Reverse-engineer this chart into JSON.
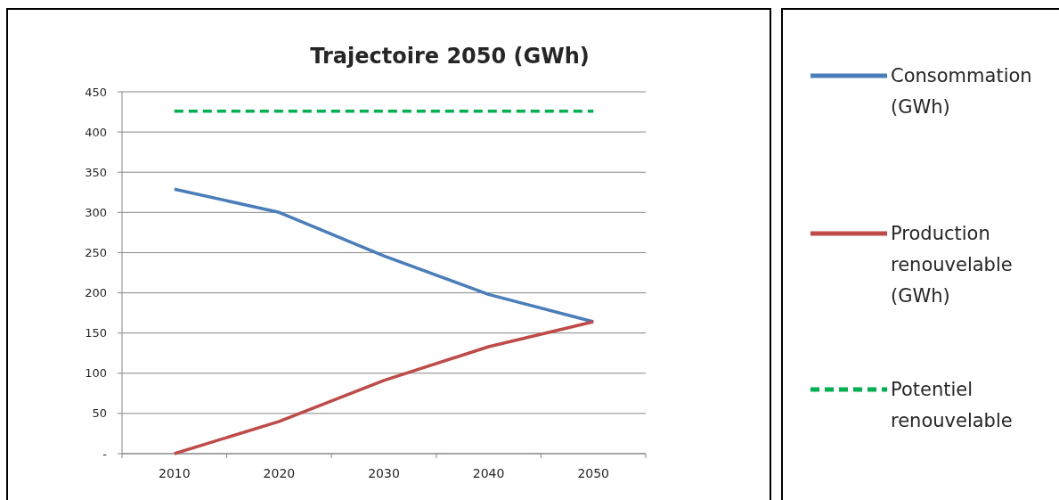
{
  "chart_data": {
    "type": "line",
    "title": "Trajectoire 2050 (GWh)",
    "categories": [
      "2010",
      "2020",
      "2030",
      "2040",
      "2050"
    ],
    "series": [
      {
        "name": "Consommation (GWh)",
        "color": "#4a7ebb",
        "values": [
          329,
          300,
          246,
          198,
          164
        ]
      },
      {
        "name": "Production renouvelable (GWh)",
        "color": "#be4b48",
        "values": [
          0,
          40,
          91,
          133,
          164
        ]
      },
      {
        "name": "Potentiel renouvelable",
        "color": "#00b050",
        "values": [
          426,
          426,
          426,
          426,
          426
        ],
        "line_style": "dashed"
      }
    ],
    "ylim": [
      0,
      450
    ],
    "yticks": [
      {
        "value": 0,
        "label": "-"
      },
      50,
      100,
      150,
      200,
      250,
      300,
      350,
      400,
      450
    ],
    "grid": "y",
    "legend": "right",
    "marker": "none"
  }
}
